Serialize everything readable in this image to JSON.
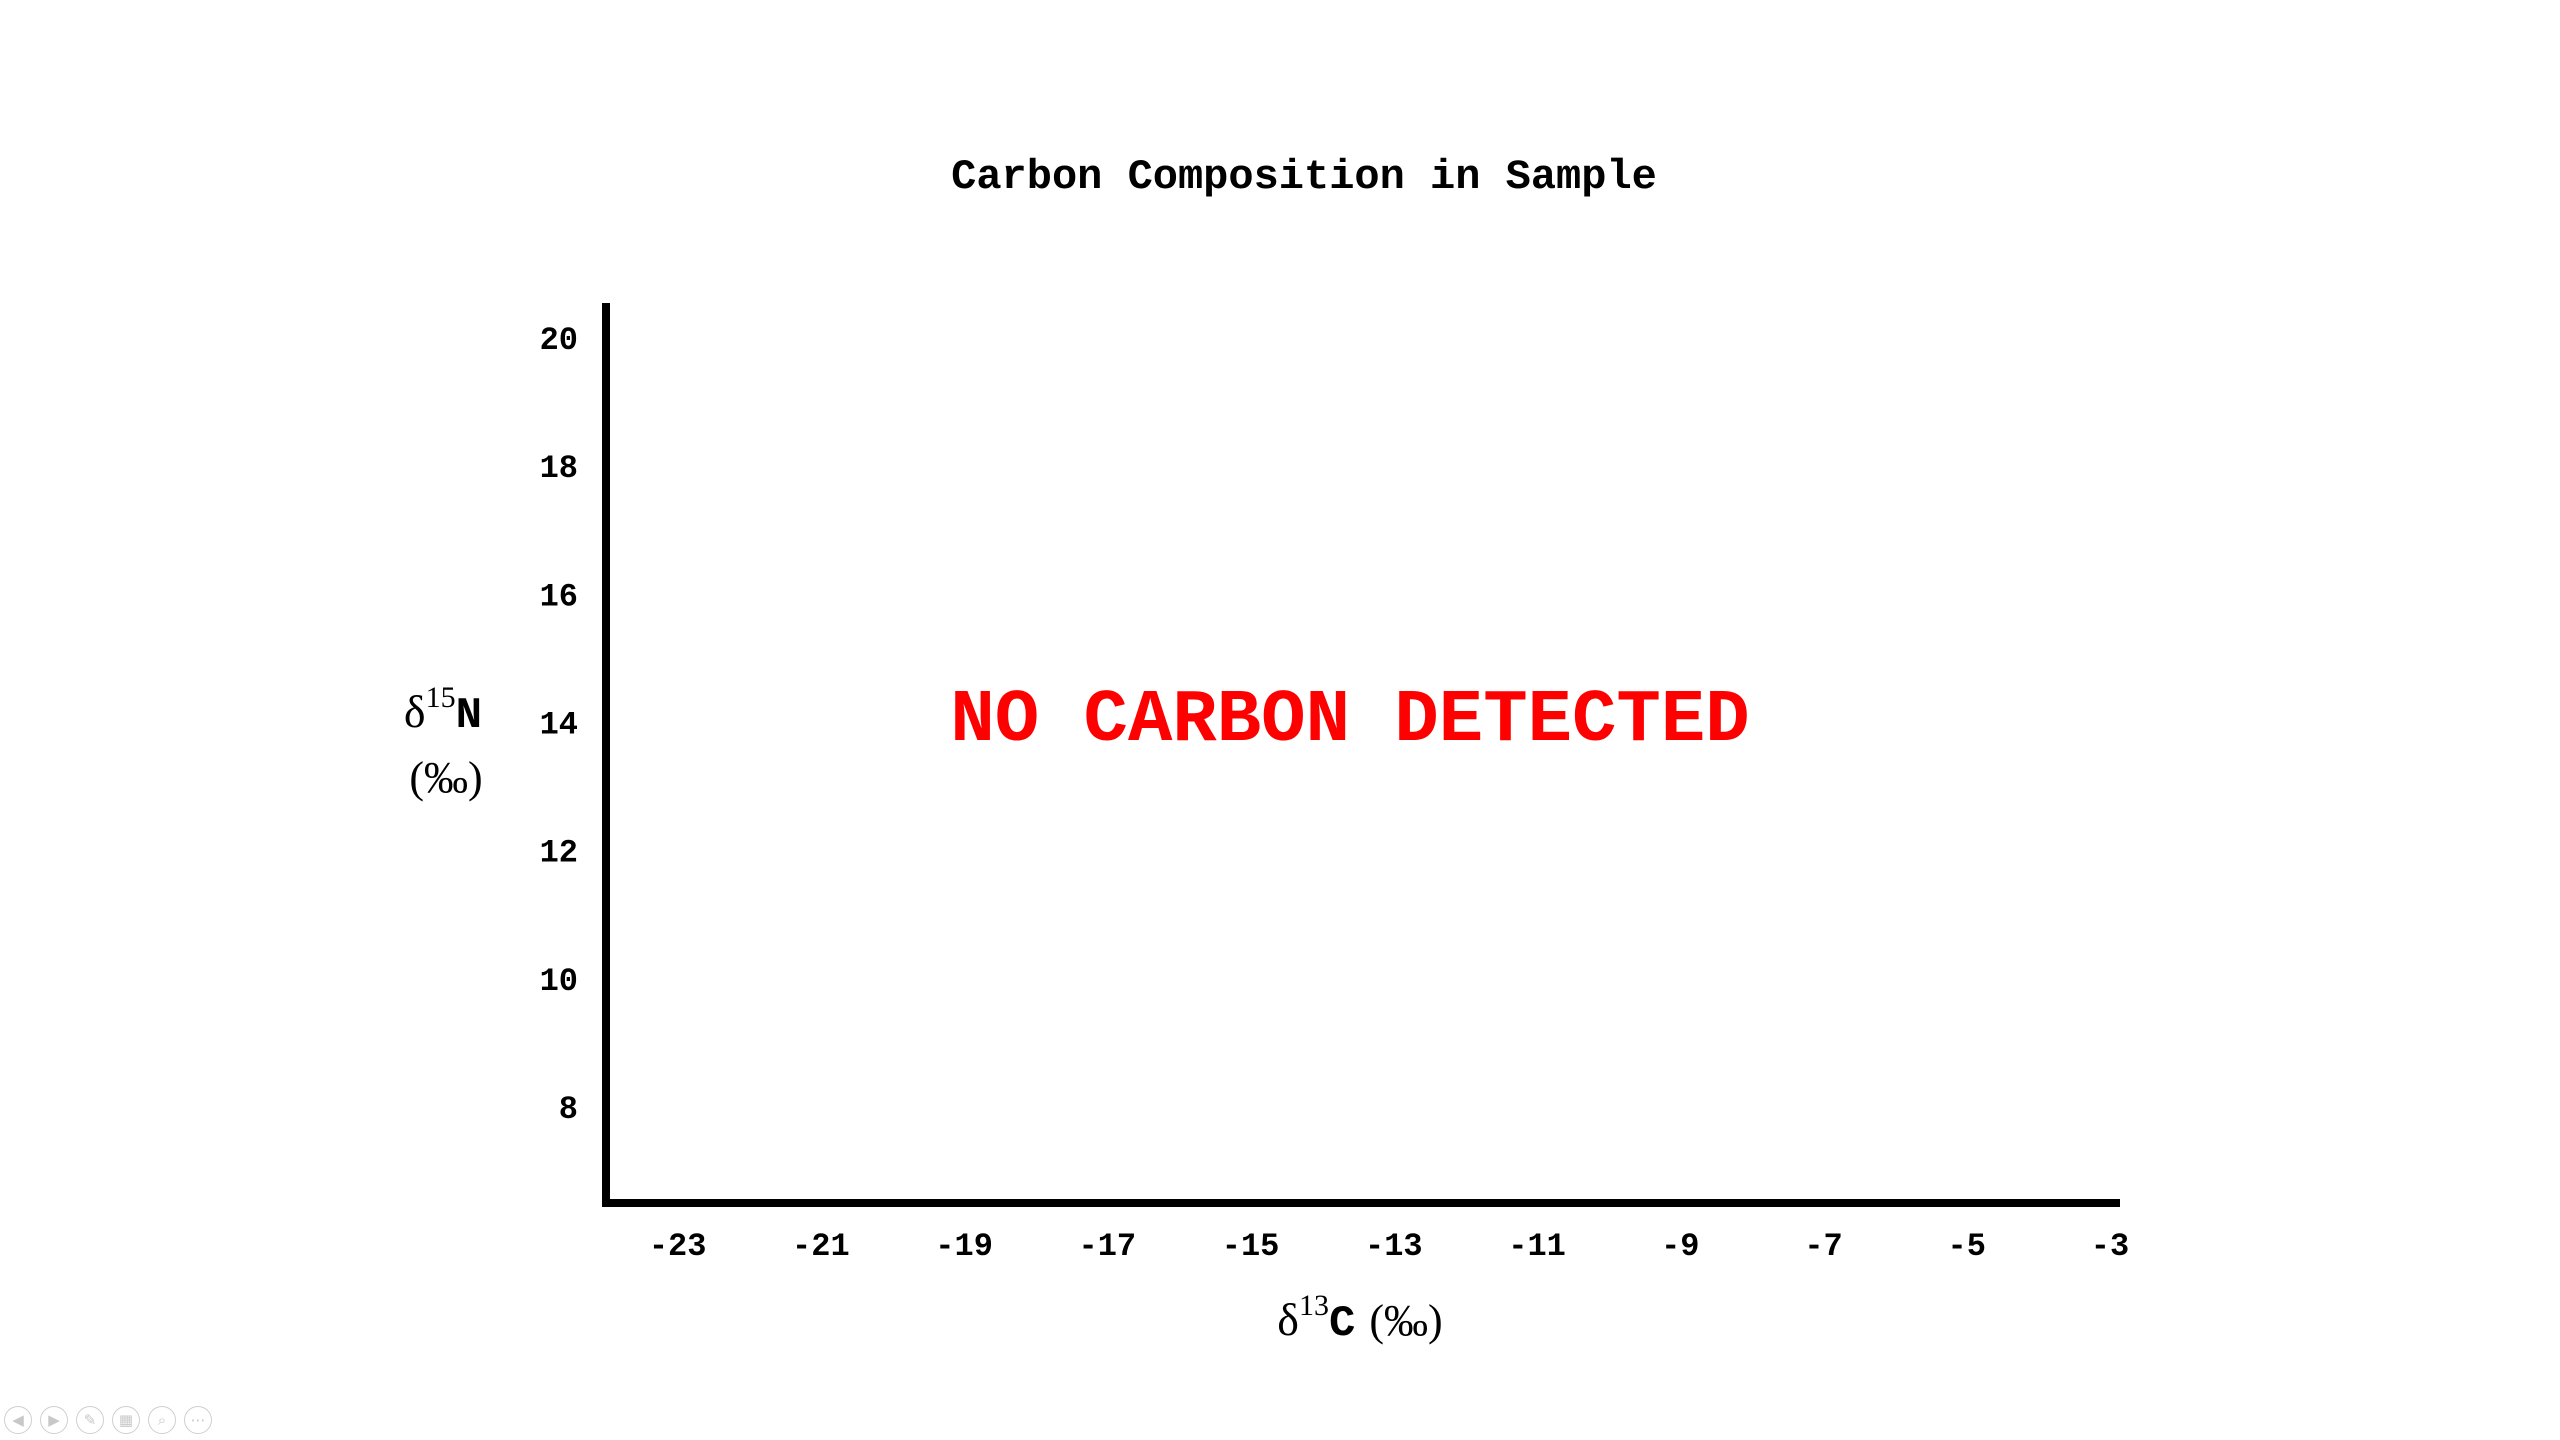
{
  "chart_data": {
    "type": "scatter",
    "title": "Carbon Composition in Sample",
    "xlabel": {
      "symbol": "δ",
      "superscript": "13",
      "element": "C",
      "unit": "(‰)"
    },
    "ylabel": {
      "symbol": "δ",
      "superscript": "15",
      "element": "N",
      "unit": "(‰)"
    },
    "x_ticks": [
      -23,
      -21,
      -19,
      -17,
      -15,
      -13,
      -11,
      -9,
      -7,
      -5,
      -3
    ],
    "y_ticks": [
      8,
      10,
      12,
      14,
      16,
      18,
      20
    ],
    "xlim": [
      -24,
      -3
    ],
    "ylim": [
      6.5,
      20.5
    ],
    "grid": false,
    "series": [],
    "annotation": "NO CARBON DETECTED",
    "colors": {
      "annotation": "#ff0000",
      "axis": "#000000"
    }
  },
  "toolbar": {
    "buttons": [
      {
        "name": "previous-slide-icon",
        "glyph": "◀"
      },
      {
        "name": "next-slide-icon",
        "glyph": "▶"
      },
      {
        "name": "pen-icon",
        "glyph": "✎"
      },
      {
        "name": "slides-grid-icon",
        "glyph": "▦"
      },
      {
        "name": "zoom-icon",
        "glyph": "⌕"
      },
      {
        "name": "more-options-icon",
        "glyph": "⋯"
      }
    ]
  }
}
